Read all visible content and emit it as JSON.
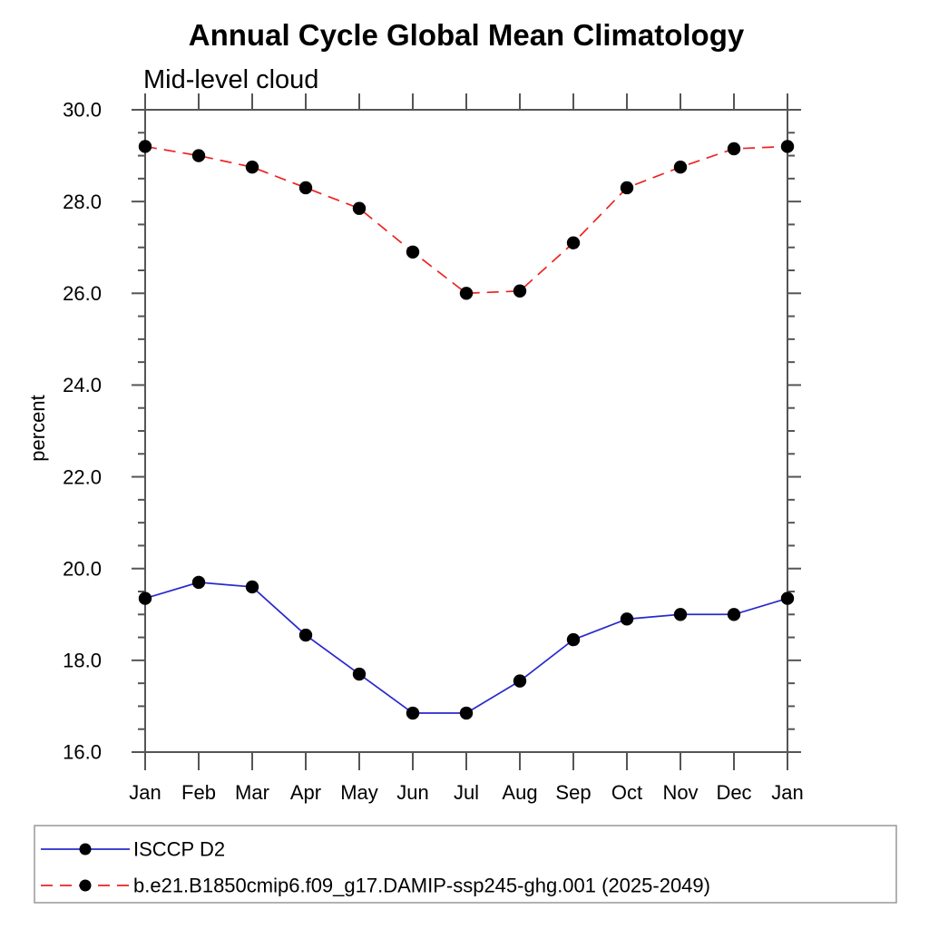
{
  "title": "Annual Cycle Global Mean Climatology",
  "subtitle": "Mid-level cloud",
  "chart_data": {
    "type": "line",
    "title": "Annual Cycle Global Mean Climatology",
    "subtitle": "Mid-level cloud",
    "xlabel": "",
    "ylabel": "percent",
    "categories": [
      "Jan",
      "Feb",
      "Mar",
      "Apr",
      "May",
      "Jun",
      "Jul",
      "Aug",
      "Sep",
      "Oct",
      "Nov",
      "Dec",
      "Jan"
    ],
    "ylim": [
      16.0,
      30.0
    ],
    "ytick_major_interval": 2.0,
    "ytick_minor_interval": 0.5,
    "ytick_labels": [
      "16.0",
      "18.0",
      "20.0",
      "22.0",
      "24.0",
      "26.0",
      "28.0",
      "30.0"
    ],
    "grid": false,
    "legend_position": "bottom",
    "series": [
      {
        "name": "ISCCP D2",
        "color": "#2929cc",
        "line_style": "solid",
        "marker": "circle",
        "marker_color": "#000000",
        "values": [
          19.35,
          19.7,
          19.6,
          18.55,
          17.7,
          16.85,
          16.85,
          17.55,
          18.45,
          18.9,
          19.0,
          19.0,
          19.35
        ]
      },
      {
        "name": "b.e21.B1850cmip6.f09_g17.DAMIP-ssp245-ghg.001 (2025-2049)",
        "color": "#ee2222",
        "line_style": "dashed",
        "marker": "circle",
        "marker_color": "#000000",
        "values": [
          29.2,
          29.0,
          28.75,
          28.3,
          27.85,
          26.9,
          26.0,
          26.05,
          27.1,
          28.3,
          28.75,
          29.15,
          29.2
        ]
      }
    ]
  }
}
